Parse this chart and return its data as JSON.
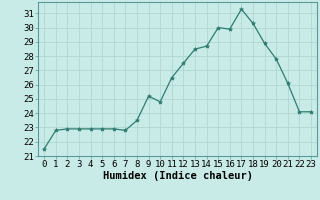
{
  "x": [
    0,
    1,
    2,
    3,
    4,
    5,
    6,
    7,
    8,
    9,
    10,
    11,
    12,
    13,
    14,
    15,
    16,
    17,
    18,
    19,
    20,
    21,
    22,
    23
  ],
  "y": [
    21.5,
    22.8,
    22.9,
    22.9,
    22.9,
    22.9,
    22.9,
    22.8,
    23.5,
    25.2,
    24.8,
    26.5,
    27.5,
    28.5,
    28.7,
    30.0,
    29.9,
    31.3,
    30.3,
    28.9,
    27.8,
    26.1,
    24.1,
    24.1
  ],
  "line_color": "#2e7d6e",
  "marker": "*",
  "marker_size": 3,
  "bg_color": "#c8ebe8",
  "grid_color": "#aed6d2",
  "xlabel": "Humidex (Indice chaleur)",
  "xlim": [
    -0.5,
    23.5
  ],
  "ylim": [
    21,
    31.8
  ],
  "yticks": [
    21,
    22,
    23,
    24,
    25,
    26,
    27,
    28,
    29,
    30,
    31
  ],
  "xticks": [
    0,
    1,
    2,
    3,
    4,
    5,
    6,
    7,
    8,
    9,
    10,
    11,
    12,
    13,
    14,
    15,
    16,
    17,
    18,
    19,
    20,
    21,
    22,
    23
  ],
  "tick_fontsize": 6.5,
  "xlabel_fontsize": 7.5
}
